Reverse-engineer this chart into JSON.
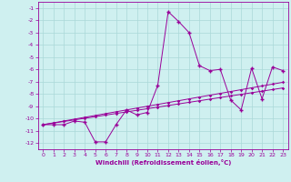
{
  "title": "",
  "xlabel": "Windchill (Refroidissement éolien,°C)",
  "bg_color": "#cff0f0",
  "grid_color": "#aad8d8",
  "line_color": "#990099",
  "x_hours": [
    0,
    1,
    2,
    3,
    4,
    5,
    6,
    7,
    8,
    9,
    10,
    11,
    12,
    13,
    14,
    15,
    16,
    17,
    18,
    19,
    20,
    21,
    22,
    23
  ],
  "y_windchill": [
    -10.5,
    -10.5,
    -10.5,
    -10.2,
    -10.3,
    -11.9,
    -11.9,
    -10.5,
    -9.3,
    -9.7,
    -9.5,
    -7.3,
    -1.3,
    -2.1,
    -3.0,
    -5.7,
    -6.1,
    -6.0,
    -8.5,
    -9.3,
    -5.9,
    -8.4,
    -5.8,
    -6.1
  ],
  "y_line1": [
    -10.5,
    -10.35,
    -10.2,
    -10.05,
    -9.9,
    -9.75,
    -9.6,
    -9.45,
    -9.3,
    -9.15,
    -9.0,
    -8.85,
    -8.7,
    -8.55,
    -8.4,
    -8.25,
    -8.1,
    -7.95,
    -7.8,
    -7.65,
    -7.5,
    -7.35,
    -7.2,
    -7.05
  ],
  "y_line2": [
    -10.5,
    -10.37,
    -10.24,
    -10.11,
    -9.98,
    -9.85,
    -9.72,
    -9.59,
    -9.46,
    -9.33,
    -9.2,
    -9.07,
    -8.94,
    -8.81,
    -8.68,
    -8.55,
    -8.42,
    -8.29,
    -8.16,
    -8.03,
    -7.9,
    -7.77,
    -7.64,
    -7.51
  ],
  "ylim": [
    -12.5,
    -0.5
  ],
  "yticks": [
    -1,
    -2,
    -3,
    -4,
    -5,
    -6,
    -7,
    -8,
    -9,
    -10,
    -11,
    -12
  ],
  "xlim": [
    -0.5,
    23.5
  ],
  "xticks": [
    0,
    1,
    2,
    3,
    4,
    5,
    6,
    7,
    8,
    9,
    10,
    11,
    12,
    13,
    14,
    15,
    16,
    17,
    18,
    19,
    20,
    21,
    22,
    23
  ]
}
